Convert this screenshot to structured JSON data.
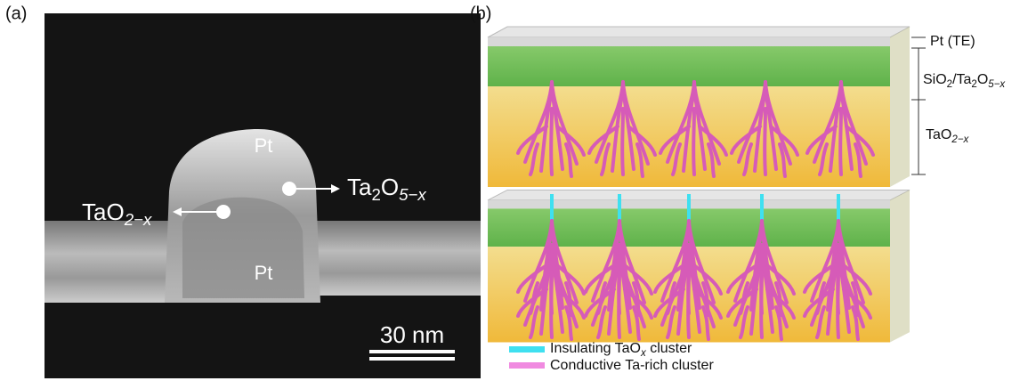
{
  "panel_a": {
    "label": "(a)",
    "pt_top": "Pt",
    "pt_bottom": "Pt",
    "tao_label": [
      "TaO",
      "2−x"
    ],
    "ta2o5_label": [
      "Ta",
      "2",
      "O",
      "5−x"
    ],
    "scale_bar": "30 nm"
  },
  "panel_b": {
    "label": "(b)",
    "pt_te": "Pt (TE)",
    "sio2_label": [
      "SiO",
      "2",
      "/Ta",
      "2",
      "O",
      "5−x"
    ],
    "tao_label": [
      "TaO",
      "2−x"
    ],
    "legend": [
      "Insulating TaO",
      "x",
      " cluster",
      "Conductive Ta-rich cluster"
    ]
  }
}
